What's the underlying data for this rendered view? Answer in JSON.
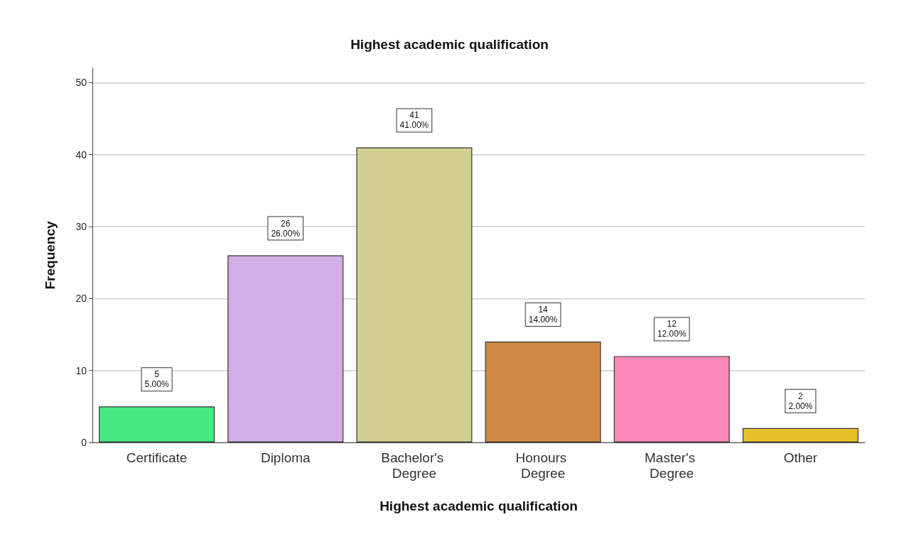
{
  "chart_data": {
    "type": "bar",
    "title": "Highest academic qualification",
    "xlabel": "Highest academic qualification",
    "ylabel": "Frequency",
    "categories": [
      "Certificate",
      "Diploma",
      "Bachelor's Degree",
      "Honours Degree",
      "Master's Degree",
      "Other"
    ],
    "values": [
      5,
      26,
      41,
      14,
      12,
      2
    ],
    "colors": [
      "#45e880",
      "#d3aee6",
      "#d3cf92",
      "#d08a44",
      "#fe88b8",
      "#e6c02a"
    ],
    "value_labels": [
      "5\n5.00%",
      "26\n26.00%",
      "41\n41.00%",
      "14\n14.00%",
      "12\n12.00%",
      "2\n2.00%"
    ],
    "ylim": [
      0,
      52
    ],
    "yticks": [
      0,
      10,
      20,
      30,
      40,
      50
    ],
    "grid": "y"
  }
}
